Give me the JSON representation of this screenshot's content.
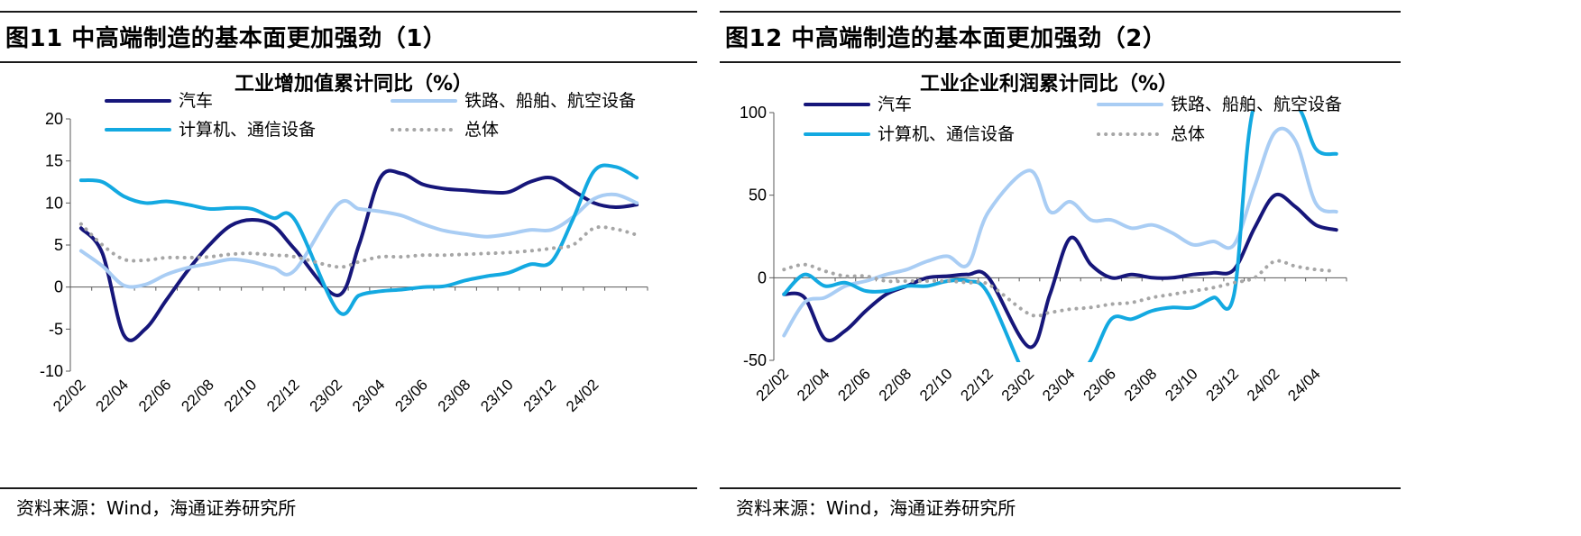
{
  "colors": {
    "auto": "#16167a",
    "rail": "#a9cdf4",
    "computer": "#13a9e1",
    "total": "#a6a6a6"
  },
  "panels": [
    {
      "fig_title": "图11 中高端制造的基本面更加强劲（1）",
      "source": "资料来源：Wind，海通证券研究所",
      "chart_title": "工业增加值累计同比（%）"
    },
    {
      "fig_title": "图12 中高端制造的基本面更加强劲（2）",
      "source": "资料来源：Wind，海通证券研究所",
      "chart_title": "工业企业利润累计同比（%）"
    }
  ],
  "chart_data": [
    {
      "type": "line",
      "title": "工业增加值累计同比（%）",
      "ylim": [
        -10,
        20
      ],
      "yticks": [
        -10,
        -5,
        0,
        5,
        10,
        15,
        20
      ],
      "ytick_labels": [
        "-10",
        "-5",
        "0",
        "5",
        "10",
        "15",
        "20"
      ],
      "grid": false,
      "legend": "top",
      "x": [
        "22/02",
        "22/03",
        "22/04",
        "22/05",
        "22/06",
        "22/07",
        "22/08",
        "22/09",
        "22/10",
        "22/11",
        "22/12",
        "23/01",
        "23/02",
        "23/03",
        "23/04",
        "23/05",
        "23/06",
        "23/07",
        "23/08",
        "23/09",
        "23/10",
        "23/11",
        "23/12",
        "24/01",
        "24/02",
        "24/03",
        "24/04"
      ],
      "xtick_labels": [
        "22/02",
        "22/04",
        "22/06",
        "22/08",
        "22/10",
        "22/12",
        "23/02",
        "23/04",
        "23/06",
        "23/08",
        "23/10",
        "23/12",
        "24/02"
      ],
      "series": [
        {
          "name": "汽车",
          "color_key": "auto",
          "style": "solid",
          "values": [
            7.0,
            4.0,
            -5.7,
            -5.0,
            -1.5,
            2.0,
            5.0,
            7.3,
            8.0,
            7.3,
            4.5,
            null,
            -1.0,
            5.0,
            13.0,
            13.5,
            12.2,
            11.7,
            11.5,
            11.3,
            11.3,
            12.5,
            13.0,
            11.5,
            10.0,
            9.5,
            9.8
          ]
        },
        {
          "name": "铁路、船舶、航空设备",
          "color_key": "rail",
          "style": "solid",
          "values": [
            4.3,
            2.5,
            0.2,
            0.3,
            1.5,
            2.3,
            2.8,
            3.3,
            3.0,
            2.3,
            2.0,
            null,
            9.8,
            9.3,
            9.0,
            8.5,
            7.5,
            6.7,
            6.3,
            6.0,
            6.3,
            6.8,
            6.8,
            8.3,
            10.5,
            11.0,
            10.0
          ]
        },
        {
          "name": "计算机、通信设备",
          "color_key": "computer",
          "style": "solid",
          "values": [
            12.7,
            12.5,
            10.8,
            10.0,
            10.2,
            9.8,
            9.3,
            9.4,
            9.3,
            8.2,
            8.0,
            null,
            -2.8,
            -1.0,
            -0.5,
            -0.3,
            0.0,
            0.1,
            0.8,
            1.3,
            1.7,
            2.7,
            3.0,
            8.0,
            13.8,
            14.3,
            13.0
          ]
        },
        {
          "name": "总体",
          "color_key": "total",
          "style": "dotted",
          "values": [
            7.5,
            5.0,
            3.3,
            3.2,
            3.5,
            3.5,
            3.6,
            3.9,
            4.0,
            3.8,
            3.6,
            null,
            2.4,
            3.0,
            3.6,
            3.6,
            3.8,
            3.8,
            3.9,
            4.0,
            4.1,
            4.3,
            4.6,
            5.0,
            7.0,
            6.9,
            6.2
          ]
        }
      ]
    },
    {
      "type": "line",
      "title": "工业企业利润累计同比（%）",
      "ylim": [
        -50,
        100
      ],
      "yticks": [
        -50,
        0,
        50,
        100
      ],
      "ytick_labels": [
        "-50",
        "0",
        "50",
        "100"
      ],
      "grid": false,
      "legend": "top",
      "x": [
        "22/02",
        "22/03",
        "22/04",
        "22/05",
        "22/06",
        "22/07",
        "22/08",
        "22/09",
        "22/10",
        "22/11",
        "22/12",
        "23/01",
        "23/02",
        "23/03",
        "23/04",
        "23/05",
        "23/06",
        "23/07",
        "23/08",
        "23/09",
        "23/10",
        "23/11",
        "23/12",
        "24/01",
        "24/02",
        "24/03",
        "24/04",
        "24/05"
      ],
      "xtick_labels": [
        "22/02",
        "22/04",
        "22/06",
        "22/08",
        "22/10",
        "22/12",
        "23/02",
        "23/04",
        "23/06",
        "23/08",
        "23/10",
        "23/12",
        "24/02",
        "24/04"
      ],
      "series": [
        {
          "name": "汽车",
          "color_key": "auto",
          "style": "solid",
          "values": [
            -10,
            -12,
            -37,
            -32,
            -20,
            -10,
            -5,
            0,
            1,
            2,
            0,
            null,
            -42,
            -10,
            24,
            8,
            0,
            2,
            0,
            0,
            2,
            3,
            5,
            30,
            50,
            43,
            32,
            29
          ]
        },
        {
          "name": "铁路、船舶、航空设备",
          "color_key": "rail",
          "style": "solid",
          "values": [
            -35,
            -15,
            -12,
            -5,
            -2,
            2,
            5,
            10,
            13,
            8,
            40,
            null,
            65,
            40,
            46,
            35,
            35,
            30,
            32,
            27,
            20,
            22,
            20,
            55,
            88,
            83,
            45,
            40
          ]
        },
        {
          "name": "计算机、通信设备",
          "color_key": "computer",
          "style": "solid",
          "values": [
            -10,
            2,
            -5,
            -3,
            -8,
            -8,
            -5,
            -5,
            -2,
            -2,
            -10,
            null,
            -65,
            -72,
            -65,
            -50,
            -25,
            -25,
            -20,
            -18,
            -18,
            -12,
            -10,
            105,
            null,
            105,
            78,
            75
          ]
        },
        {
          "name": "总体",
          "color_key": "total",
          "style": "dotted",
          "values": [
            5,
            8,
            4,
            1,
            1,
            -2,
            -2,
            -2,
            -2,
            -3,
            -4,
            null,
            -22,
            -21,
            -19,
            -18,
            -16,
            -15,
            -12,
            -10,
            -8,
            -6,
            -3,
            0,
            10,
            7,
            5,
            4
          ]
        }
      ]
    }
  ]
}
